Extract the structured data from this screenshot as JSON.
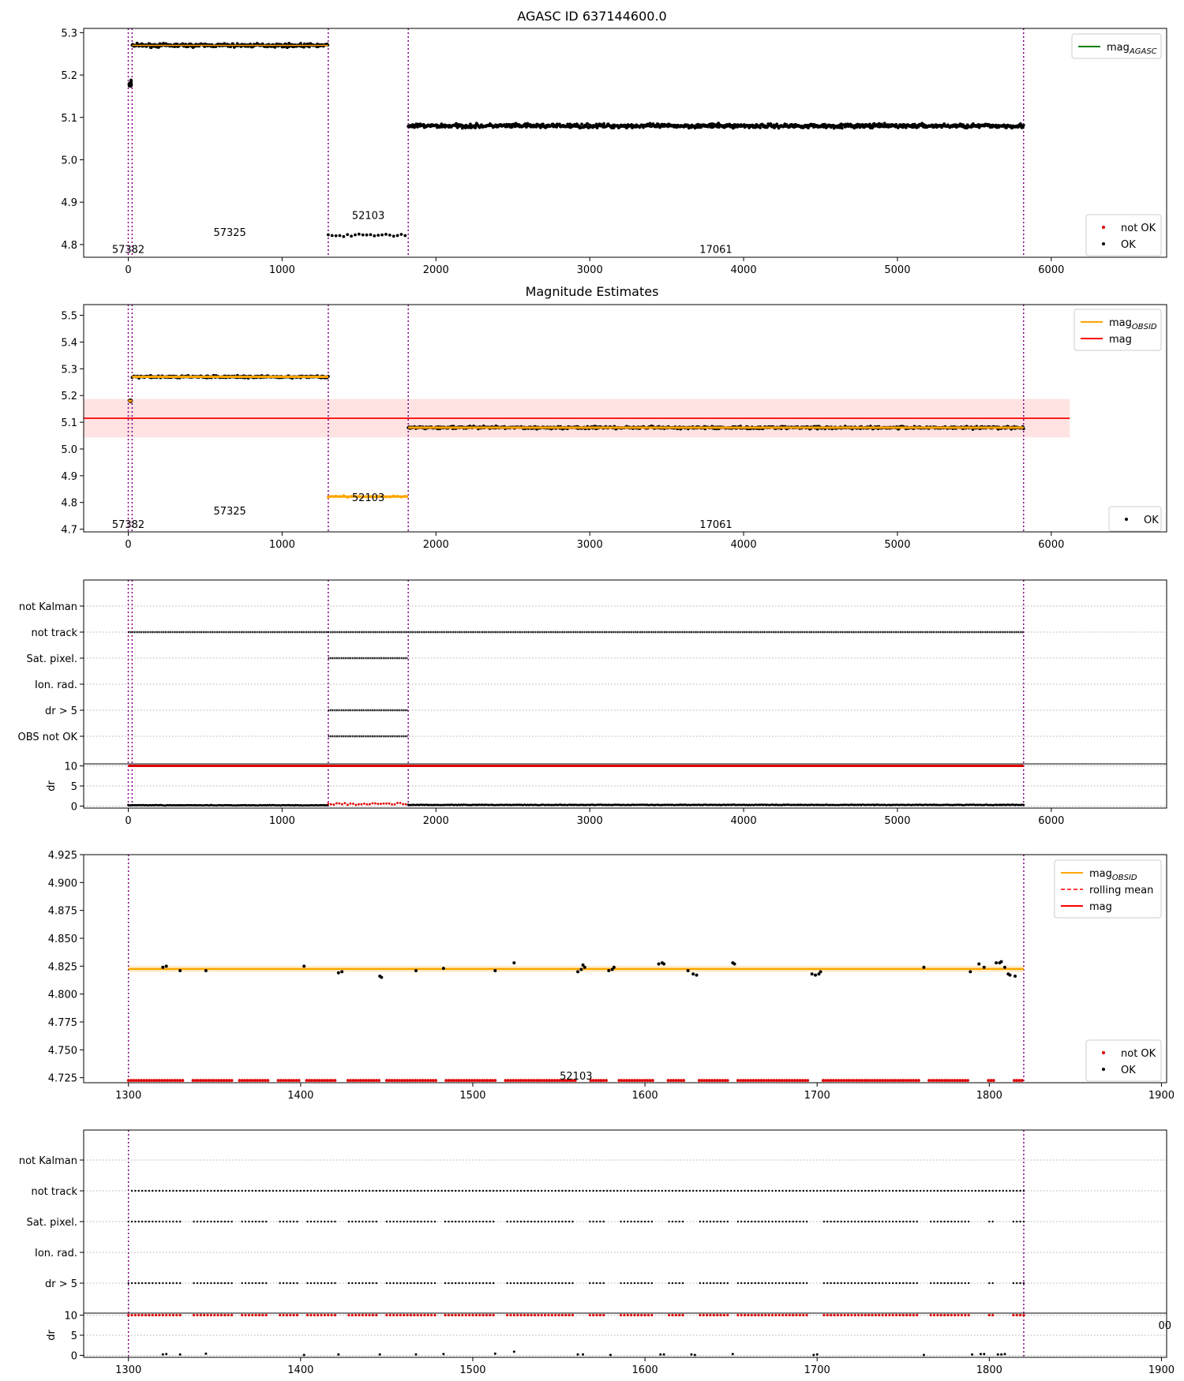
{
  "figure_title": "AGASC ID 637144600.0",
  "colors": {
    "ok": "#000000",
    "not_ok": "#e00000",
    "obsid": "#ffa500",
    "mag": "#ff0000",
    "agasc": "#008000",
    "band": "#ffcccc",
    "vline": "#800080",
    "grid": "#b0b0b0"
  },
  "chart_data": [
    {
      "type": "scatter",
      "title": "AGASC ID 637144600.0",
      "xlim": [
        -290,
        6750
      ],
      "ylim": [
        4.77,
        5.31
      ],
      "xticks": [
        0,
        1000,
        2000,
        3000,
        4000,
        5000,
        6000
      ],
      "yticks": [
        4.8,
        4.9,
        5.0,
        5.1,
        5.2,
        5.3
      ],
      "vlines": [
        0,
        25,
        1300,
        1820,
        5820
      ],
      "segments": [
        {
          "obsid": "57382",
          "x": [
            0,
            25
          ],
          "y": 5.18
        },
        {
          "obsid": "57325",
          "x": [
            25,
            1300
          ],
          "y": 5.27
        },
        {
          "obsid": "52103",
          "x": [
            1300,
            1820
          ],
          "y": 4.822
        },
        {
          "obsid": "17061",
          "x": [
            1820,
            5820
          ],
          "y": 5.08
        }
      ],
      "obsid_labels": [
        {
          "text": "57382",
          "x": 0,
          "y": 4.79
        },
        {
          "text": "57325",
          "x": 660,
          "y": 4.83
        },
        {
          "text": "52103",
          "x": 1560,
          "y": 4.87
        },
        {
          "text": "17061",
          "x": 3820,
          "y": 4.79
        }
      ],
      "legends": [
        {
          "position": "top-right",
          "entries": [
            {
              "label": "mag",
              "sub": "AGASC",
              "kind": "line",
              "color": "agasc"
            }
          ]
        },
        {
          "position": "bottom-right",
          "entries": [
            {
              "label": "not OK",
              "kind": "dot",
              "color": "not_ok"
            },
            {
              "label": "OK",
              "kind": "dot",
              "color": "ok"
            }
          ]
        }
      ]
    },
    {
      "type": "scatter",
      "title": "Magnitude Estimates",
      "xlim": [
        -290,
        6750
      ],
      "ylim": [
        4.69,
        5.54
      ],
      "xticks": [
        0,
        1000,
        2000,
        3000,
        4000,
        5000,
        6000
      ],
      "yticks": [
        4.7,
        4.8,
        4.9,
        5.0,
        5.1,
        5.2,
        5.3,
        5.4,
        5.5
      ],
      "vlines": [
        0,
        25,
        1300,
        1820,
        5820
      ],
      "mag": 5.115,
      "mag_band": [
        5.043,
        5.187
      ],
      "mag_xrange": [
        -290,
        6120
      ],
      "segments": [
        {
          "obsid": "57382",
          "x": [
            0,
            25
          ],
          "y": 5.18
        },
        {
          "obsid": "57325",
          "x": [
            25,
            1300
          ],
          "y": 5.27
        },
        {
          "obsid": "52103",
          "x": [
            1300,
            1820
          ],
          "y": 4.822
        },
        {
          "obsid": "17061",
          "x": [
            1820,
            5820
          ],
          "y": 5.08
        }
      ],
      "obsid_labels": [
        {
          "text": "57382",
          "x": 0,
          "y": 4.72
        },
        {
          "text": "57325",
          "x": 660,
          "y": 4.77
        },
        {
          "text": "52103",
          "x": 1560,
          "y": 4.82
        },
        {
          "text": "17061",
          "x": 3820,
          "y": 4.72
        }
      ],
      "legends": [
        {
          "position": "top-right",
          "entries": [
            {
              "label": "mag",
              "sub": "OBSID",
              "kind": "line",
              "color": "obsid"
            },
            {
              "label": "mag",
              "kind": "line",
              "color": "mag"
            }
          ]
        },
        {
          "position": "bottom-right",
          "entries": [
            {
              "label": "OK",
              "kind": "dot",
              "color": "ok"
            }
          ]
        }
      ]
    },
    {
      "type": "scatter",
      "xlim": [
        -290,
        6750
      ],
      "xticks": [
        0,
        1000,
        2000,
        3000,
        4000,
        5000,
        6000
      ],
      "vlines": [
        0,
        25,
        1300,
        1820,
        5820
      ],
      "flag_rows": [
        "not Kalman",
        "not track",
        "Sat. pixel.",
        "Ion. rad.",
        "dr > 5",
        "OBS not OK"
      ],
      "flags": [
        {
          "row": "not track",
          "x": [
            0,
            5820
          ]
        },
        {
          "row": "Sat. pixel.",
          "x": [
            1300,
            1820
          ]
        },
        {
          "row": "dr > 5",
          "x": [
            1300,
            1820
          ]
        },
        {
          "row": "OBS not OK",
          "x": [
            1300,
            1820
          ]
        }
      ],
      "dr_ylabel": "dr",
      "dr_yticks": [
        0,
        5,
        10
      ],
      "dr_ylim": [
        -0.5,
        10.5
      ],
      "dr_cap": {
        "y": 10,
        "x": [
          0,
          5820
        ]
      },
      "dr_ok": [
        {
          "x": [
            0,
            1300
          ],
          "y": 0.2
        },
        {
          "x": [
            1820,
            5820
          ],
          "y": 0.3
        }
      ],
      "dr_not_ok": {
        "x": [
          1300,
          1820
        ],
        "y": 0.3
      }
    },
    {
      "type": "scatter",
      "xlim": [
        1274,
        1903
      ],
      "ylim": [
        4.7205,
        4.925
      ],
      "xticks": [
        1300,
        1400,
        1500,
        1600,
        1700,
        1800,
        1900
      ],
      "yticks": [
        4.725,
        4.75,
        4.775,
        4.8,
        4.825,
        4.85,
        4.875,
        4.9,
        4.925
      ],
      "vlines": [
        1300,
        1820
      ],
      "mag_obsid": 4.8225,
      "obsid_band": [
        4.8195,
        4.8255
      ],
      "not_ok_y": 4.7225,
      "obsid_labels": [
        {
          "text": "52103",
          "x": 1560,
          "y": 4.727
        }
      ],
      "ok_points": [
        [
          1320,
          4.824
        ],
        [
          1322,
          4.825
        ],
        [
          1330,
          4.821
        ],
        [
          1345,
          4.821
        ],
        [
          1402,
          4.825
        ],
        [
          1422,
          4.819
        ],
        [
          1424,
          4.82
        ],
        [
          1446,
          4.816
        ],
        [
          1447,
          4.815
        ],
        [
          1467,
          4.821
        ],
        [
          1483,
          4.823
        ],
        [
          1513,
          4.821
        ],
        [
          1524,
          4.828
        ],
        [
          1561,
          4.82
        ],
        [
          1563,
          4.822
        ],
        [
          1564,
          4.826
        ],
        [
          1565,
          4.824
        ],
        [
          1579,
          4.821
        ],
        [
          1581,
          4.822
        ],
        [
          1582,
          4.824
        ],
        [
          1608,
          4.827
        ],
        [
          1610,
          4.828
        ],
        [
          1611,
          4.827
        ],
        [
          1625,
          4.821
        ],
        [
          1628,
          4.818
        ],
        [
          1630,
          4.817
        ],
        [
          1651,
          4.828
        ],
        [
          1652,
          4.827
        ],
        [
          1697,
          4.818
        ],
        [
          1699,
          4.817
        ],
        [
          1701,
          4.818
        ],
        [
          1702,
          4.82
        ],
        [
          1762,
          4.824
        ],
        [
          1789,
          4.82
        ],
        [
          1794,
          4.827
        ],
        [
          1797,
          4.824
        ],
        [
          1804,
          4.828
        ],
        [
          1806,
          4.828
        ],
        [
          1807,
          4.829
        ],
        [
          1809,
          4.824
        ],
        [
          1811,
          4.818
        ],
        [
          1812,
          4.817
        ],
        [
          1815,
          4.816
        ]
      ],
      "gaps": [
        [
          1332,
          1336
        ],
        [
          1361,
          1364
        ],
        [
          1382,
          1386
        ],
        [
          1400,
          1403
        ],
        [
          1421,
          1426
        ],
        [
          1446,
          1449
        ],
        [
          1480,
          1483
        ],
        [
          1514,
          1518
        ],
        [
          1560,
          1567
        ],
        [
          1578,
          1584
        ],
        [
          1606,
          1612
        ],
        [
          1623,
          1630
        ],
        [
          1649,
          1653
        ],
        [
          1696,
          1703
        ],
        [
          1760,
          1764
        ],
        [
          1789,
          1798
        ],
        [
          1803,
          1813
        ]
      ],
      "legends": [
        {
          "position": "top-right",
          "entries": [
            {
              "label": "mag",
              "sub": "OBSID",
              "kind": "line",
              "color": "obsid"
            },
            {
              "label": "rolling mean",
              "kind": "dashed",
              "color": "mag"
            },
            {
              "label": "mag",
              "kind": "line",
              "color": "mag"
            }
          ]
        },
        {
          "position": "bottom-right",
          "entries": [
            {
              "label": "not OK",
              "kind": "dot",
              "color": "not_ok"
            },
            {
              "label": "OK",
              "kind": "dot",
              "color": "ok"
            }
          ]
        }
      ]
    },
    {
      "type": "scatter",
      "xlim": [
        1274,
        1903
      ],
      "xticks": [
        1300,
        1400,
        1500,
        1600,
        1700,
        1800,
        1900
      ],
      "vlines": [
        1300,
        1820
      ],
      "flag_rows": [
        "not Kalman",
        "not track",
        "Sat. pixel.",
        "Ion. rad.",
        "dr > 5"
      ],
      "flags_dotted": [
        {
          "row": "not track",
          "x": [
            1302,
            1820
          ],
          "gaps": []
        },
        {
          "row": "Sat. pixel.",
          "x": [
            1300,
            1820
          ],
          "gaps": "shared"
        },
        {
          "row": "dr > 5",
          "x": [
            1300,
            1820
          ],
          "gaps": "shared"
        }
      ],
      "dr_ylabel": "dr",
      "dr_yticks": [
        0,
        5,
        10
      ],
      "dr_ylim": [
        -0.5,
        10.5
      ],
      "dr_cap": {
        "y": 10,
        "x": [
          1300,
          1820
        ]
      },
      "dr_ok_points": [
        [
          1320,
          0.2
        ],
        [
          1322,
          0.3
        ],
        [
          1330,
          0.2
        ],
        [
          1345,
          0.4
        ],
        [
          1402,
          0.1
        ],
        [
          1422,
          0.2
        ],
        [
          1446,
          0.2
        ],
        [
          1467,
          0.2
        ],
        [
          1483,
          0.3
        ],
        [
          1513,
          0.4
        ],
        [
          1524,
          0.9
        ],
        [
          1561,
          0.2
        ],
        [
          1564,
          0.2
        ],
        [
          1580,
          0.1
        ],
        [
          1609,
          0.2
        ],
        [
          1611,
          0.2
        ],
        [
          1627,
          0.2
        ],
        [
          1629,
          0.1
        ],
        [
          1651,
          0.3
        ],
        [
          1698,
          0.1
        ],
        [
          1700,
          0.2
        ],
        [
          1762,
          0.1
        ],
        [
          1790,
          0.2
        ],
        [
          1795,
          0.3
        ],
        [
          1797,
          0.3
        ],
        [
          1805,
          0.2
        ],
        [
          1807,
          0.2
        ],
        [
          1809,
          0.3
        ]
      ],
      "tick_fragment": "00"
    }
  ]
}
